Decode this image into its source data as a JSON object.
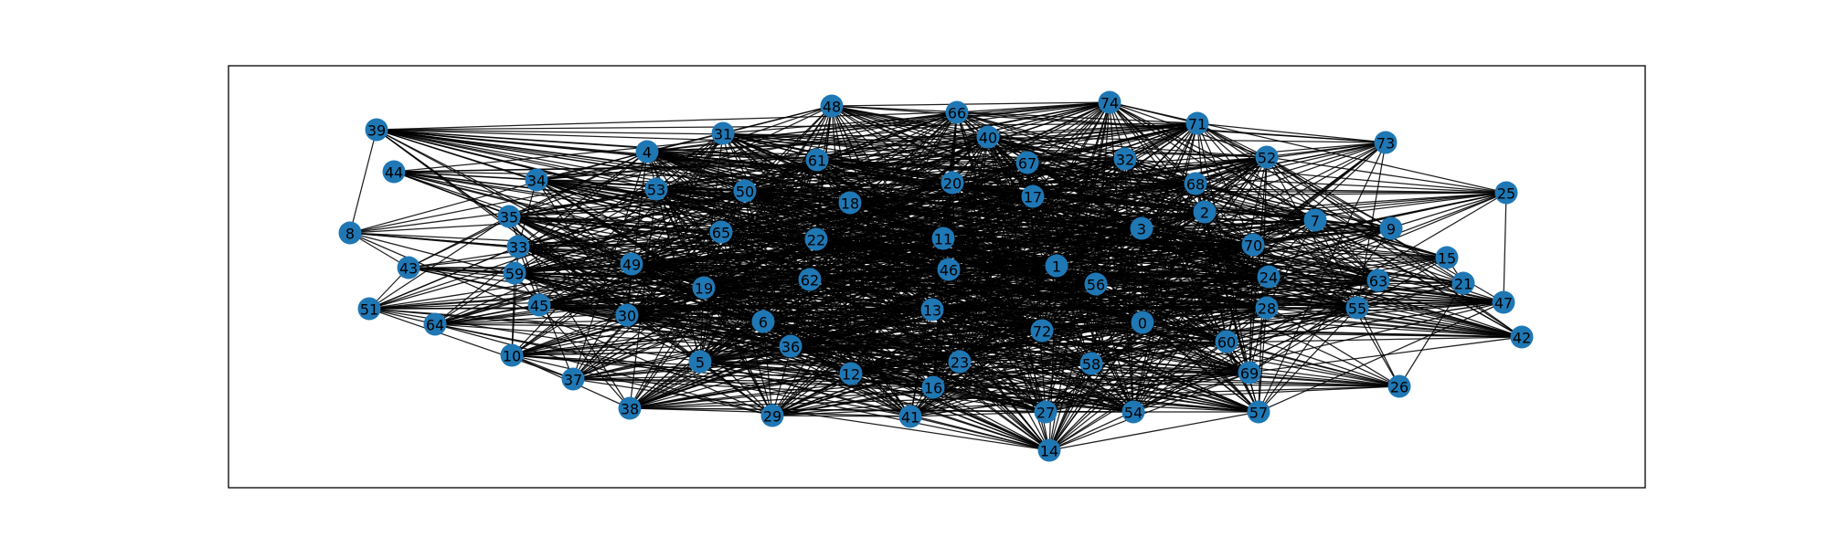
{
  "graph": {
    "type": "network",
    "node_color": "#1f77b4",
    "edge_color": "#000000",
    "frame_color": "#000000",
    "background_color": "#ffffff",
    "nodes": [
      "0",
      "1",
      "2",
      "3",
      "4",
      "5",
      "6",
      "7",
      "8",
      "9",
      "10",
      "11",
      "12",
      "13",
      "14",
      "15",
      "16",
      "17",
      "18",
      "19",
      "20",
      "21",
      "22",
      "23",
      "24",
      "25",
      "26",
      "27",
      "28",
      "29",
      "30",
      "31",
      "32",
      "33",
      "34",
      "35",
      "36",
      "37",
      "38",
      "39",
      "40",
      "41",
      "42",
      "43",
      "44",
      "45",
      "46",
      "47",
      "48",
      "49",
      "50",
      "51",
      "52",
      "53",
      "54",
      "55",
      "56",
      "57",
      "58",
      "59",
      "60",
      "61",
      "62",
      "63",
      "64",
      "65",
      "66",
      "67",
      "68",
      "69",
      "70",
      "71",
      "72",
      "73",
      "74"
    ],
    "edge_rule": "dense: each node connected to a large subset of others (edges not individually legible)"
  }
}
